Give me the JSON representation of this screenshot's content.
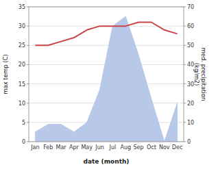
{
  "chart_data": {
    "type": "line",
    "categories": [
      "Jan",
      "Feb",
      "Mar",
      "Apr",
      "May",
      "Jun",
      "Jul",
      "Aug",
      "Sep",
      "Oct",
      "Nov",
      "Dec"
    ],
    "xlabel": "date (month)",
    "ylabel": "max temp (C)",
    "y2label": "med. precipitation\n(kg/m2)",
    "series": [
      {
        "type": "line",
        "color": "#cc4444",
        "values": [
          25,
          25,
          26,
          27,
          29,
          30,
          30,
          30,
          31,
          31,
          29,
          28
        ]
      },
      {
        "type": "area",
        "axis": "y2",
        "color": "#b8c8e8",
        "values": [
          5,
          9,
          9,
          5,
          10,
          27,
          60,
          65,
          45,
          22,
          0,
          20
        ]
      }
    ],
    "ylim": [
      0,
      35
    ],
    "yticks": [
      0,
      5,
      10,
      15,
      20,
      25,
      30,
      35
    ],
    "y2lim": [
      0,
      70
    ],
    "y2ticks": [
      0,
      10,
      20,
      30,
      40,
      50,
      60,
      70
    ],
    "grid": true
  }
}
